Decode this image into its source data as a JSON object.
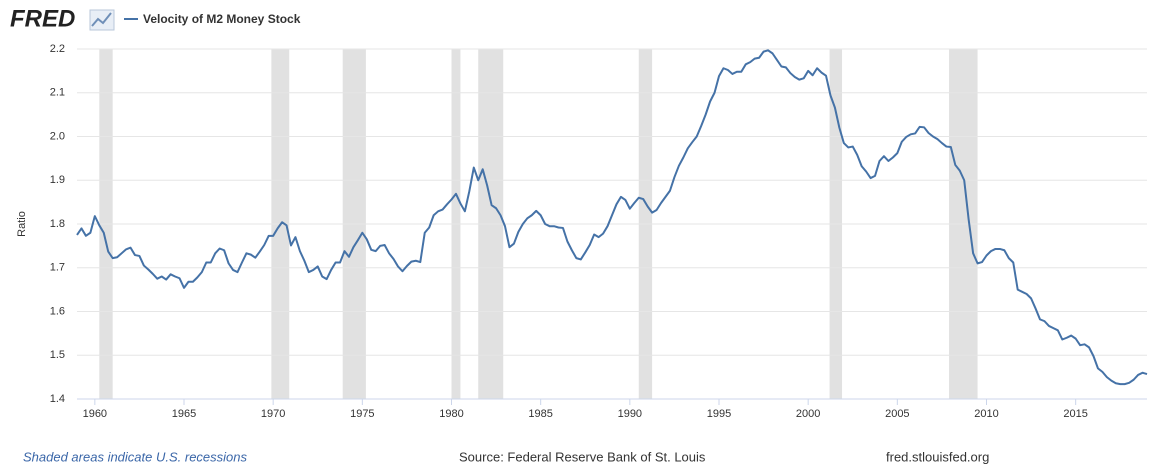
{
  "logo": "FRED",
  "chart_data": {
    "type": "line",
    "legend_label": "Velocity of M2 Money Stock",
    "y_label": "Ratio",
    "footer": {
      "note": "Shaded areas indicate U.S. recessions",
      "source": "Source: Federal Reserve Bank of St. Louis",
      "site": "fred.stlouisfed.org"
    },
    "xlim": [
      1959,
      2019
    ],
    "ylim": [
      1.4,
      2.2
    ],
    "xticks": [
      1960,
      1965,
      1970,
      1975,
      1980,
      1985,
      1990,
      1995,
      2000,
      2005,
      2010,
      2015
    ],
    "yticks": [
      1.4,
      1.5,
      1.6,
      1.7,
      1.8,
      1.9,
      {
        "value": 2,
        "label": "2.0"
      },
      2.1,
      2.2
    ],
    "grid": true,
    "recession_color": "#e1e1e1",
    "recessions": [
      {
        "start": 1960.25,
        "end": 1961
      },
      {
        "start": 1969.9,
        "end": 1970.9
      },
      {
        "start": 1973.9,
        "end": 1975.2
      },
      {
        "start": 1980,
        "end": 1980.5
      },
      {
        "start": 1981.5,
        "end": 1982.9
      },
      {
        "start": 1990.5,
        "end": 1991.25
      },
      {
        "start": 2001.2,
        "end": 2001.9
      },
      {
        "start": 2007.9,
        "end": 2009.5
      }
    ],
    "x": [
      1959,
      1959.25,
      1959.5,
      1959.75,
      1960,
      1960.25,
      1960.5,
      1960.75,
      1961,
      1961.25,
      1961.5,
      1961.75,
      1962,
      1962.25,
      1962.5,
      1962.75,
      1963,
      1963.25,
      1963.5,
      1963.75,
      1964,
      1964.25,
      1964.5,
      1964.75,
      1965,
      1965.25,
      1965.5,
      1965.75,
      1966,
      1966.25,
      1966.5,
      1966.75,
      1967,
      1967.25,
      1967.5,
      1967.75,
      1968,
      1968.25,
      1968.5,
      1968.75,
      1969,
      1969.25,
      1969.5,
      1969.75,
      1970,
      1970.25,
      1970.5,
      1970.75,
      1971,
      1971.25,
      1971.5,
      1971.75,
      1972,
      1972.25,
      1972.5,
      1972.75,
      1973,
      1973.25,
      1973.5,
      1973.75,
      1974,
      1974.25,
      1974.5,
      1974.75,
      1975,
      1975.25,
      1975.5,
      1975.75,
      1976,
      1976.25,
      1976.5,
      1976.75,
      1977,
      1977.25,
      1977.5,
      1977.75,
      1978,
      1978.25,
      1978.5,
      1978.75,
      1979,
      1979.25,
      1979.5,
      1979.75,
      1980,
      1980.25,
      1980.5,
      1980.75,
      1981,
      1981.25,
      1981.5,
      1981.75,
      1982,
      1982.25,
      1982.5,
      1982.75,
      1983,
      1983.25,
      1983.5,
      1983.75,
      1984,
      1984.25,
      1984.5,
      1984.75,
      1985,
      1985.25,
      1985.5,
      1985.75,
      1986,
      1986.25,
      1986.5,
      1986.75,
      1987,
      1987.25,
      1987.5,
      1987.75,
      1988,
      1988.25,
      1988.5,
      1988.75,
      1989,
      1989.25,
      1989.5,
      1989.75,
      1990,
      1990.25,
      1990.5,
      1990.75,
      1991,
      1991.25,
      1991.5,
      1991.75,
      1992,
      1992.25,
      1992.5,
      1992.75,
      1993,
      1993.25,
      1993.5,
      1993.75,
      1994,
      1994.25,
      1994.5,
      1994.75,
      1995,
      1995.25,
      1995.5,
      1995.75,
      1996,
      1996.25,
      1996.5,
      1996.75,
      1997,
      1997.25,
      1997.5,
      1997.75,
      1998,
      1998.25,
      1998.5,
      1998.75,
      1999,
      1999.25,
      1999.5,
      1999.75,
      2000,
      2000.25,
      2000.5,
      2000.75,
      2001,
      2001.25,
      2001.5,
      2001.75,
      2002,
      2002.25,
      2002.5,
      2002.75,
      2003,
      2003.25,
      2003.5,
      2003.75,
      2004,
      2004.25,
      2004.5,
      2004.75,
      2005,
      2005.25,
      2005.5,
      2005.75,
      2006,
      2006.25,
      2006.5,
      2006.75,
      2007,
      2007.25,
      2007.5,
      2007.75,
      2008,
      2008.25,
      2008.5,
      2008.75,
      2009,
      2009.25,
      2009.5,
      2009.75,
      2010,
      2010.25,
      2010.5,
      2010.75,
      2011,
      2011.25,
      2011.5,
      2011.75,
      2012,
      2012.25,
      2012.5,
      2012.75,
      2013,
      2013.25,
      2013.5,
      2013.75,
      2014,
      2014.25,
      2014.5,
      2014.75,
      2015,
      2015.25,
      2015.5,
      2015.75,
      2016,
      2016.25,
      2016.5,
      2016.75,
      2017,
      2017.25,
      2017.5,
      2017.75,
      2018,
      2018.25,
      2018.5,
      2018.75,
      2019
    ],
    "series": [
      {
        "name": "Velocity of M2 Money Stock",
        "color": "#4572a7",
        "values": [
          1.775,
          1.79,
          1.773,
          1.78,
          1.818,
          1.797,
          1.78,
          1.737,
          1.722,
          1.724,
          1.733,
          1.742,
          1.746,
          1.729,
          1.727,
          1.705,
          1.696,
          1.686,
          1.675,
          1.68,
          1.673,
          1.685,
          1.68,
          1.676,
          1.654,
          1.668,
          1.668,
          1.678,
          1.69,
          1.712,
          1.712,
          1.733,
          1.744,
          1.74,
          1.71,
          1.695,
          1.69,
          1.712,
          1.733,
          1.73,
          1.723,
          1.737,
          1.752,
          1.773,
          1.773,
          1.79,
          1.804,
          1.797,
          1.751,
          1.77,
          1.738,
          1.716,
          1.69,
          1.695,
          1.703,
          1.68,
          1.674,
          1.695,
          1.712,
          1.712,
          1.738,
          1.725,
          1.747,
          1.763,
          1.78,
          1.765,
          1.741,
          1.738,
          1.75,
          1.752,
          1.733,
          1.72,
          1.703,
          1.692,
          1.704,
          1.714,
          1.716,
          1.713,
          1.78,
          1.792,
          1.82,
          1.829,
          1.833,
          1.845,
          1.856,
          1.869,
          1.847,
          1.829,
          1.875,
          1.929,
          1.9,
          1.925,
          1.888,
          1.843,
          1.836,
          1.82,
          1.795,
          1.747,
          1.755,
          1.782,
          1.8,
          1.813,
          1.82,
          1.83,
          1.82,
          1.8,
          1.795,
          1.795,
          1.792,
          1.791,
          1.76,
          1.74,
          1.722,
          1.719,
          1.735,
          1.752,
          1.776,
          1.77,
          1.778,
          1.795,
          1.82,
          1.845,
          1.862,
          1.855,
          1.835,
          1.848,
          1.86,
          1.857,
          1.84,
          1.826,
          1.832,
          1.848,
          1.862,
          1.876,
          1.907,
          1.933,
          1.952,
          1.973,
          1.987,
          2.0,
          2.024,
          2.05,
          2.08,
          2.1,
          2.138,
          2.156,
          2.152,
          2.143,
          2.148,
          2.148,
          2.165,
          2.17,
          2.178,
          2.18,
          2.194,
          2.197,
          2.19,
          2.175,
          2.16,
          2.158,
          2.145,
          2.136,
          2.13,
          2.133,
          2.15,
          2.14,
          2.156,
          2.146,
          2.139,
          2.094,
          2.066,
          2.02,
          1.985,
          1.975,
          1.977,
          1.958,
          1.932,
          1.92,
          1.905,
          1.91,
          1.944,
          1.955,
          1.944,
          1.952,
          1.962,
          1.988,
          1.999,
          2.005,
          2.007,
          2.022,
          2.021,
          2.008,
          2.0,
          1.994,
          1.985,
          1.977,
          1.976,
          1.935,
          1.922,
          1.9,
          1.81,
          1.733,
          1.71,
          1.713,
          1.728,
          1.738,
          1.743,
          1.743,
          1.74,
          1.722,
          1.712,
          1.65,
          1.645,
          1.64,
          1.63,
          1.607,
          1.582,
          1.578,
          1.567,
          1.562,
          1.557,
          1.536,
          1.54,
          1.545,
          1.538,
          1.523,
          1.525,
          1.518,
          1.498,
          1.47,
          1.462,
          1.45,
          1.442,
          1.436,
          1.434,
          1.434,
          1.437,
          1.444,
          1.455,
          1.46,
          1.457
        ]
      }
    ]
  }
}
